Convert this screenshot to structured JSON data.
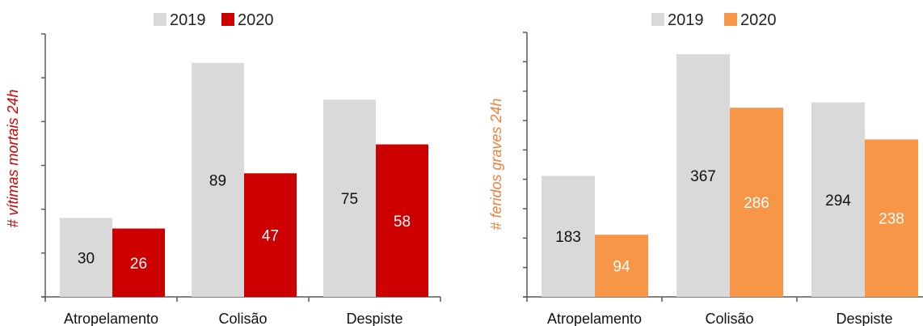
{
  "chart_data": [
    {
      "type": "bar",
      "ylabel": "# vítimas mortais 24h",
      "categories": [
        "Atropelamento",
        "Colisão",
        "Despiste"
      ],
      "series": [
        {
          "name": "2019",
          "values": [
            30,
            89,
            75
          ],
          "color": "#d9d9d9"
        },
        {
          "name": "2020",
          "values": [
            26,
            47,
            58
          ],
          "color": "#cc0000"
        }
      ],
      "ylim": [
        0,
        100
      ],
      "ylabel_color": "#cc0000",
      "legend": "top-center",
      "grid": false
    },
    {
      "type": "bar",
      "ylabel": "# feridos graves 24h",
      "categories": [
        "Atropelamento",
        "Colisão",
        "Despiste"
      ],
      "series": [
        {
          "name": "2019",
          "values": [
            183,
            367,
            294
          ],
          "color": "#d9d9d9"
        },
        {
          "name": "2020",
          "values": [
            94,
            286,
            238
          ],
          "color": "#f79646"
        }
      ],
      "ylim": [
        0,
        400
      ],
      "ylabel_color": "#f0803c",
      "legend": "top-center",
      "grid": false
    }
  ]
}
